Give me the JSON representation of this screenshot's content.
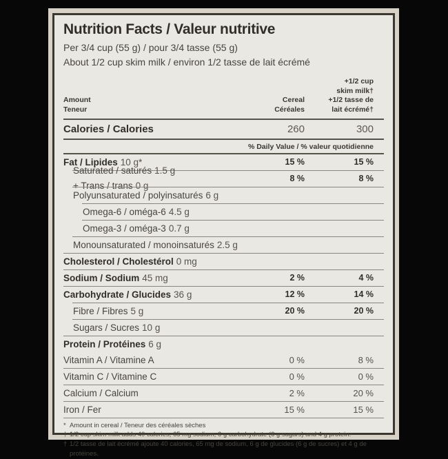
{
  "colors": {
    "panel_bg": "#e9e8e3",
    "border": "#3c382f",
    "ink": "#312e29",
    "margin_paper": "#d8d2c6",
    "page_bg": "#070707"
  },
  "header": {
    "title": "Nutrition Facts / Valeur nutritive",
    "serving_line1": "Per 3/4 cup (55 g) / pour 3/4 tasse (55 g)",
    "serving_line2": "About 1/2 cup skim milk / environ 1/2 tasse de lait écrémé"
  },
  "columns": {
    "amount_en": "Amount",
    "amount_fr": "Teneur",
    "cereal_en": "Cereal",
    "cereal_fr": "Céréales",
    "milk_line1": "+1/2 cup",
    "milk_line2": "skim milk†",
    "milk_line3": "+1/2 tasse de",
    "milk_line4": "lait écrémé†"
  },
  "calories": {
    "label": "Calories / Calories",
    "cereal": "260",
    "milk": "300"
  },
  "daily_value_header": "% Daily Value / % valeur quotidienne",
  "rows": [
    {
      "label": "Fat / Lipides",
      "amount": "10 g*",
      "cereal": "15 %",
      "milk": "15 %"
    },
    {
      "label": "Saturated / saturés",
      "amount": "1.5 g",
      "label2": "+ Trans / trans",
      "amount2": "0 g",
      "cereal": "8 %",
      "milk": "8 %"
    },
    {
      "label": "Polyunsaturated / polyinsaturés",
      "amount": "6 g"
    },
    {
      "label": "Omega-6 / oméga-6",
      "amount": "4.5 g"
    },
    {
      "label": "Omega-3 / oméga-3",
      "amount": "0.7 g"
    },
    {
      "label": "Monounsaturated / monoinsaturés",
      "amount": "2.5 g"
    },
    {
      "label": "Cholesterol / Cholestérol",
      "amount": "0 mg"
    },
    {
      "label": "Sodium / Sodium",
      "amount": "45 mg",
      "cereal": "2 %",
      "milk": "4 %"
    },
    {
      "label": "Carbohydrate / Glucides",
      "amount": "36 g",
      "cereal": "12 %",
      "milk": "14 %"
    },
    {
      "label": "Fibre / Fibres",
      "amount": "5 g",
      "cereal": "20 %",
      "milk": "20 %"
    },
    {
      "label": "Sugars / Sucres",
      "amount": "10 g"
    },
    {
      "label": "Protein / Protéines",
      "amount": "6 g"
    }
  ],
  "vitamins": [
    {
      "label": "Vitamin A / Vitamine A",
      "cereal": "0 %",
      "milk": "8 %"
    },
    {
      "label": "Vitamin C / Vitamine C",
      "cereal": "0 %",
      "milk": "0 %"
    },
    {
      "label": "Calcium / Calcium",
      "cereal": "2 %",
      "milk": "20 %"
    },
    {
      "label": "Iron / Fer",
      "cereal": "15 %",
      "milk": "15 %"
    }
  ],
  "footnotes": [
    {
      "marker": "*",
      "text": "Amount in cereal / Teneur des céréales sèches"
    },
    {
      "marker": "†",
      "text": "1/2 cup skim milk adds 40 calories, 65 mg sodium, 6 g carbohydrate (6 g sugars) and 4 g protein."
    },
    {
      "marker": "†",
      "text": "1/2 tasse de lait écrémé ajoute 40 calories, 65 mg de sodium, 6 g de glucides (6 g de sucres) et 4 g de protéines."
    }
  ]
}
